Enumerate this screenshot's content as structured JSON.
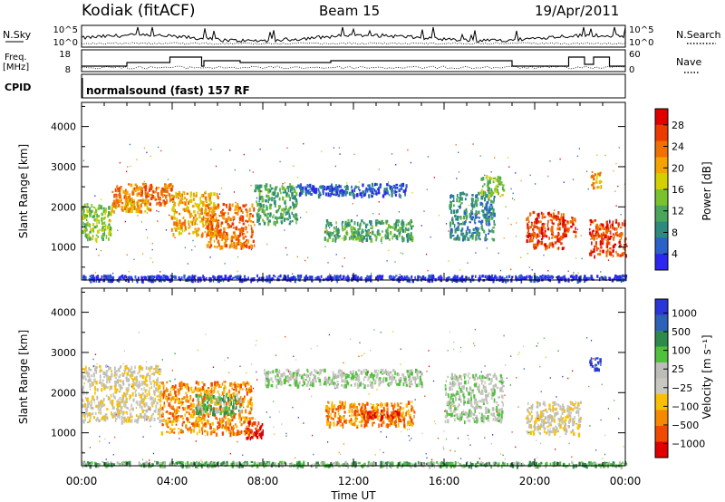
{
  "header": {
    "station": "Kodiak (fitACF)",
    "beam": "Beam 15",
    "date": "19/Apr/2011",
    "mode": "normalsound (fast) 157 RF"
  },
  "colors": {
    "power_scale": [
      "#2b26f0",
      "#2a62c8",
      "#2e8a7d",
      "#4aa65a",
      "#79c22e",
      "#d4d000",
      "#f5a300",
      "#f07000",
      "#ec3b00",
      "#e00000"
    ],
    "velocity_scale": [
      "#e00000",
      "#f04a00",
      "#f58a00",
      "#f7c000",
      "#c9c8c0",
      "#bdbdb8",
      "#4fc13b",
      "#2e8a4a",
      "#2e62b8",
      "#2a36d8"
    ]
  },
  "chart_data": [
    {
      "type": "line",
      "name": "top-strip",
      "left_label": "N.Sky",
      "right_label": "N.Search",
      "left_ticks": [
        "10^5",
        "10^0"
      ],
      "right_ticks": [
        "10^5",
        "10^0"
      ]
    },
    {
      "type": "line",
      "name": "freq-strip",
      "left_label_1": "Freq.",
      "left_label_2": "[MHz]",
      "right_label": "Nave",
      "left_ticks": [
        "18",
        "8"
      ],
      "right_ticks": [
        "60",
        "0"
      ],
      "freq_steps": [
        {
          "t": 0.0,
          "v": 11
        },
        {
          "t": 2.0,
          "v": 13
        },
        {
          "t": 3.9,
          "v": 16
        },
        {
          "t": 5.3,
          "v": 11
        },
        {
          "t": 5.4,
          "v": 14
        },
        {
          "t": 7.0,
          "v": 13
        },
        {
          "t": 11.0,
          "v": 14
        },
        {
          "t": 19.0,
          "v": 11
        },
        {
          "t": 21.3,
          "v": 11
        },
        {
          "t": 21.5,
          "v": 16
        },
        {
          "t": 22.2,
          "v": 12
        },
        {
          "t": 22.6,
          "v": 16
        },
        {
          "t": 23.3,
          "v": 11
        },
        {
          "t": 24.0,
          "v": 11
        }
      ]
    },
    {
      "type": "line",
      "name": "cpid-strip",
      "left_label": "CPID"
    },
    {
      "type": "heatmap",
      "name": "power-panel",
      "ylabel": "Slant Range [km]",
      "xlim": [
        0,
        24
      ],
      "ylim": [
        180,
        4600
      ],
      "yticks": [
        1000,
        2000,
        3000,
        4000
      ],
      "colorbar": {
        "label": "Power [dB]",
        "ticks": [
          "28",
          "24",
          "20",
          "16",
          "12",
          "8",
          "4"
        ]
      },
      "blobs": [
        {
          "t0": 0.0,
          "t1": 1.3,
          "r0": 1200,
          "r1": 2100,
          "c": 4
        },
        {
          "t0": 1.3,
          "t1": 4.0,
          "r0": 2100,
          "r1": 2600,
          "c": 7
        },
        {
          "t0": 1.3,
          "t1": 3.0,
          "r0": 1900,
          "r1": 2200,
          "c": 6
        },
        {
          "t0": 3.9,
          "t1": 6.0,
          "r0": 1300,
          "r1": 2400,
          "c": 6
        },
        {
          "t0": 5.5,
          "t1": 7.6,
          "r0": 1000,
          "r1": 2100,
          "c": 7
        },
        {
          "t0": 7.6,
          "t1": 9.5,
          "r0": 1600,
          "r1": 2600,
          "c": 3
        },
        {
          "t0": 9.5,
          "t1": 14.3,
          "r0": 2300,
          "r1": 2600,
          "c": 1
        },
        {
          "t0": 10.7,
          "t1": 14.6,
          "r0": 1200,
          "r1": 1700,
          "c": 3
        },
        {
          "t0": 16.2,
          "t1": 18.2,
          "r0": 1200,
          "r1": 2400,
          "c": 2
        },
        {
          "t0": 17.6,
          "t1": 18.6,
          "r0": 2300,
          "r1": 2800,
          "c": 4
        },
        {
          "t0": 19.6,
          "t1": 21.3,
          "r0": 1000,
          "r1": 1900,
          "c": 8
        },
        {
          "t0": 21.2,
          "t1": 21.8,
          "r0": 1300,
          "r1": 1800,
          "c": 8
        },
        {
          "t0": 22.4,
          "t1": 22.9,
          "r0": 2500,
          "r1": 2900,
          "c": 6
        },
        {
          "t0": 22.4,
          "t1": 24.0,
          "r0": 800,
          "r1": 1700,
          "c": 8
        },
        {
          "t0": 0.0,
          "t1": 24.0,
          "r0": 200,
          "r1": 320,
          "c": 0
        }
      ]
    },
    {
      "type": "heatmap",
      "name": "velocity-panel",
      "ylabel": "Slant Range [km]",
      "xlabel": "Time UT",
      "xlim": [
        0,
        24
      ],
      "ylim": [
        180,
        4600
      ],
      "yticks": [
        1000,
        2000,
        3000,
        4000
      ],
      "xtick_labels": [
        "00:00",
        "04:00",
        "08:00",
        "12:00",
        "16:00",
        "20:00",
        "00:00"
      ],
      "xtick_values": [
        0,
        4,
        8,
        12,
        16,
        20,
        24
      ],
      "colorbar": {
        "label": "Velocity [m s⁻¹]",
        "ticks": [
          "1000",
          "500",
          "100",
          "25",
          "−25",
          "−100",
          "−500",
          "−1000"
        ]
      },
      "blobs": [
        {
          "t0": 0.0,
          "t1": 3.5,
          "r0": 1300,
          "r1": 2700,
          "c": 4
        },
        {
          "t0": 3.5,
          "t1": 7.5,
          "r0": 1000,
          "r1": 2300,
          "c": 2
        },
        {
          "t0": 5.0,
          "t1": 7.0,
          "r0": 1500,
          "r1": 2000,
          "c": 6
        },
        {
          "t0": 7.2,
          "t1": 8.0,
          "r0": 900,
          "r1": 1300,
          "c": 0
        },
        {
          "t0": 8.0,
          "t1": 15.0,
          "r0": 2200,
          "r1": 2600,
          "c": 5
        },
        {
          "t0": 10.7,
          "t1": 14.7,
          "r0": 1200,
          "r1": 1800,
          "c": 2
        },
        {
          "t0": 12.0,
          "t1": 14.0,
          "r0": 1400,
          "r1": 1600,
          "c": 1
        },
        {
          "t0": 16.0,
          "t1": 18.6,
          "r0": 1300,
          "r1": 2500,
          "c": 5
        },
        {
          "t0": 19.6,
          "t1": 22.0,
          "r0": 1000,
          "r1": 1800,
          "c": 4
        },
        {
          "t0": 22.4,
          "t1": 22.9,
          "r0": 2600,
          "r1": 2900,
          "c": 9
        },
        {
          "t0": 0.0,
          "t1": 24.0,
          "r0": 200,
          "r1": 300,
          "c": 6
        }
      ]
    }
  ]
}
